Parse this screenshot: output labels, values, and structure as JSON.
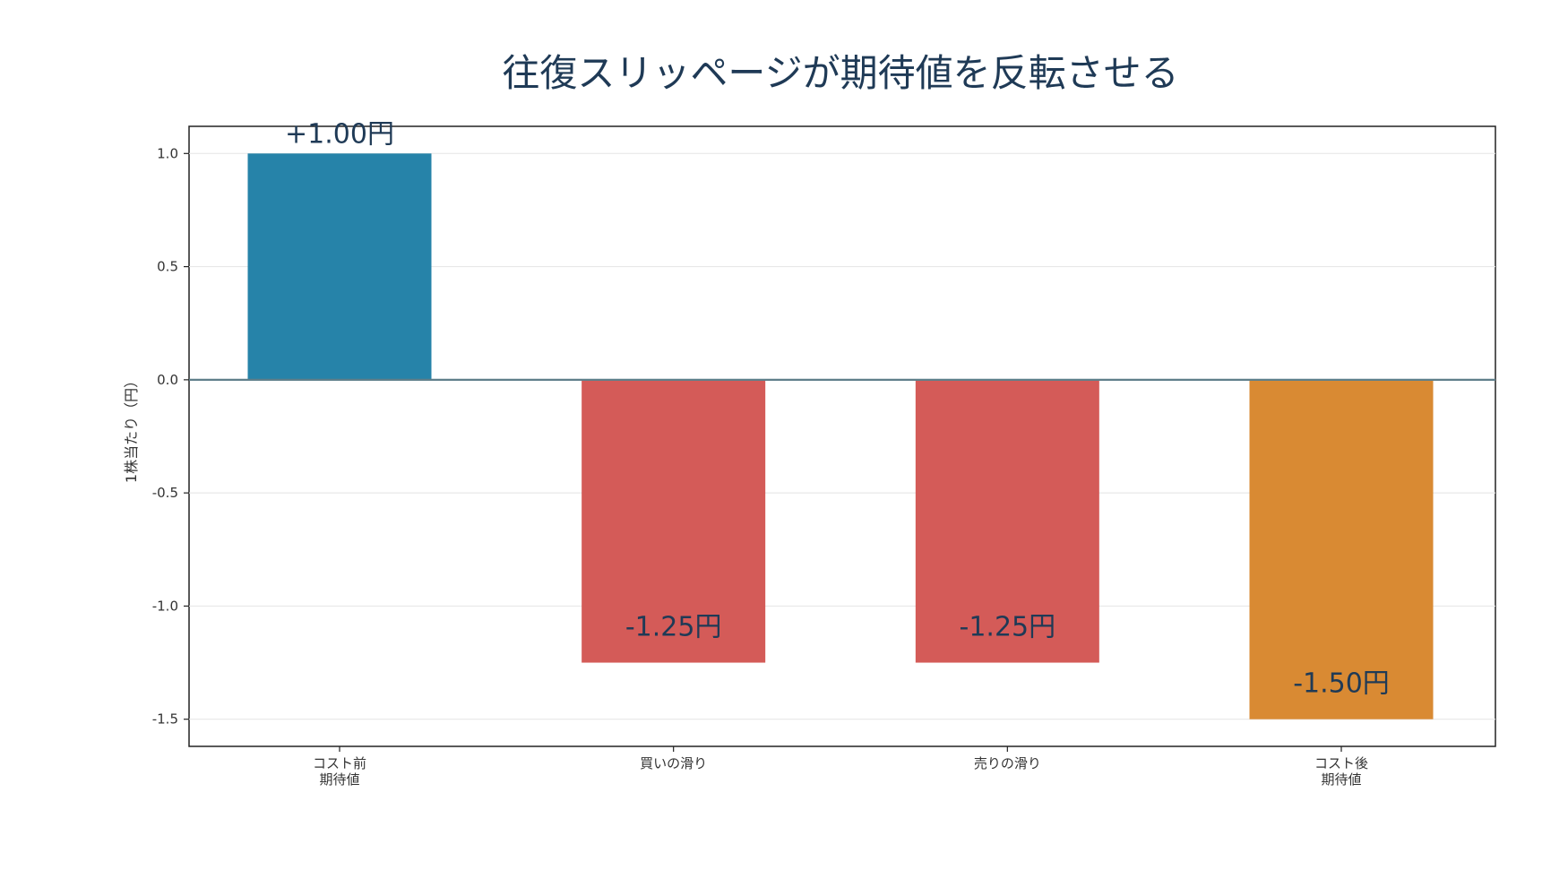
{
  "chart_data": {
    "type": "bar",
    "title": "往復スリッページが期待値を反転させる",
    "ylabel": "1株当たり（円）",
    "xlabel": "",
    "categories": [
      "コスト前\n期待値",
      "買いの滑り",
      "売りの滑り",
      "コスト後\n期待値"
    ],
    "values": [
      1.0,
      -1.25,
      -1.25,
      -1.5
    ],
    "value_labels": [
      "+1.00円",
      "-1.25円",
      "-1.25円",
      "-1.50円"
    ],
    "bar_colors": [
      "#2683a9",
      "#d45b58",
      "#d45b58",
      "#d98a33"
    ],
    "ylim": [
      -1.62,
      1.12
    ],
    "yticks": [
      1.0,
      0.5,
      0.0,
      -0.5,
      -1.0,
      -1.5
    ],
    "ytick_labels": [
      "1.0",
      "0.5",
      "0.0",
      "-0.5",
      "-1.0",
      "-1.5"
    ],
    "grid": true,
    "zero_line_color": "#5f7f8a"
  }
}
